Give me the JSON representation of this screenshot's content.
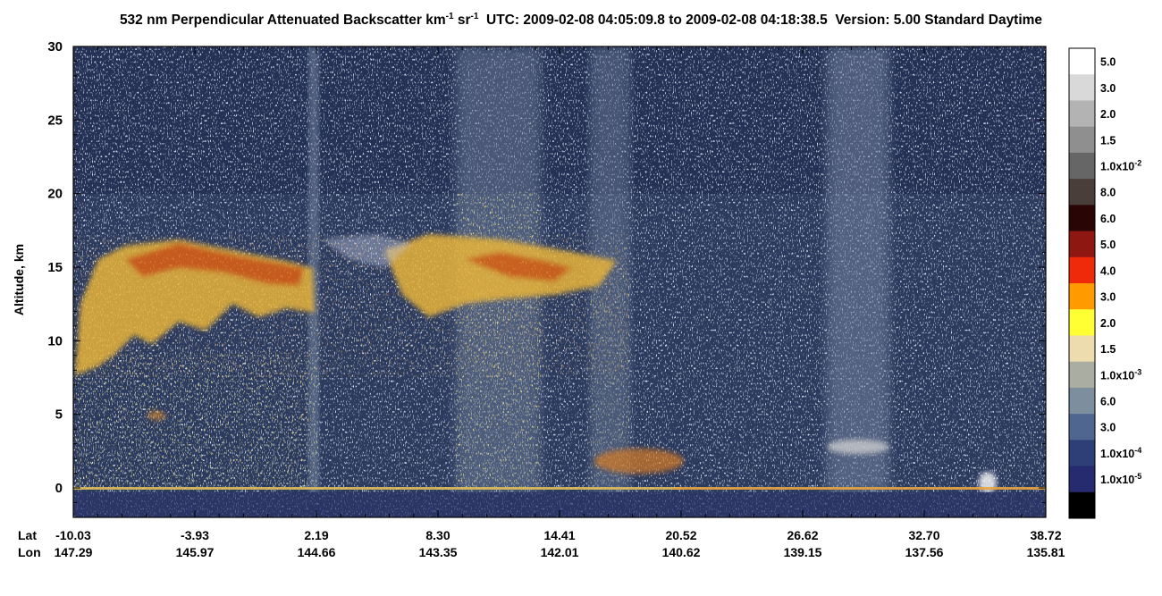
{
  "chart_data": {
    "type": "heatmap",
    "title": {
      "quantity": "532 nm Perpendicular Attenuated Backscatter km",
      "exp1": "-1",
      "unit_mid": " sr",
      "exp2": "-1",
      "rest": "  UTC: 2009-02-08 04:05:09.8 to 2009-02-08 04:18:38.5  Version: 5.00 Standard Daytime"
    },
    "ylabel": "Altitude, km",
    "ylim": [
      -2,
      30
    ],
    "y_ticks": [
      "0",
      "5",
      "10",
      "15",
      "20",
      "25",
      "30"
    ],
    "x_row_labels": [
      "Lat",
      "Lon"
    ],
    "lat_ticks": [
      "-10.03",
      "-3.93",
      "2.19",
      "8.30",
      "14.41",
      "20.52",
      "26.62",
      "32.70",
      "38.72"
    ],
    "lon_ticks": [
      "147.29",
      "145.97",
      "144.66",
      "143.35",
      "142.01",
      "140.62",
      "139.15",
      "137.56",
      "135.81"
    ],
    "colorbar": [
      {
        "label": "5.0",
        "color": "#ffffff"
      },
      {
        "label": "3.0",
        "color": "#d9d9d9"
      },
      {
        "label": "2.0",
        "color": "#b3b3b3"
      },
      {
        "label": "1.5",
        "color": "#8f8f8f"
      },
      {
        "label": "1.0x10",
        "exp": "-2",
        "color": "#666666"
      },
      {
        "label": "8.0",
        "color": "#4a3e3a"
      },
      {
        "label": "6.0",
        "color": "#2a0506"
      },
      {
        "label": "5.0",
        "color": "#8e1712"
      },
      {
        "label": "4.0",
        "color": "#ee2a0a"
      },
      {
        "label": "3.0",
        "color": "#ff9a00"
      },
      {
        "label": "2.0",
        "color": "#ffff33"
      },
      {
        "label": "1.5",
        "color": "#ecdcae"
      },
      {
        "label": "1.0x10",
        "exp": "-3",
        "color": "#a9ada2"
      },
      {
        "label": "6.0",
        "color": "#7d8e9e"
      },
      {
        "label": "3.0",
        "color": "#4f6790"
      },
      {
        "label": "1.0x10",
        "exp": "-4",
        "color": "#2e3f78"
      },
      {
        "label": "1.0x10",
        "exp": "-5",
        "color": "#262a6e"
      },
      {
        "label": "",
        "color": "#000000"
      }
    ]
  }
}
